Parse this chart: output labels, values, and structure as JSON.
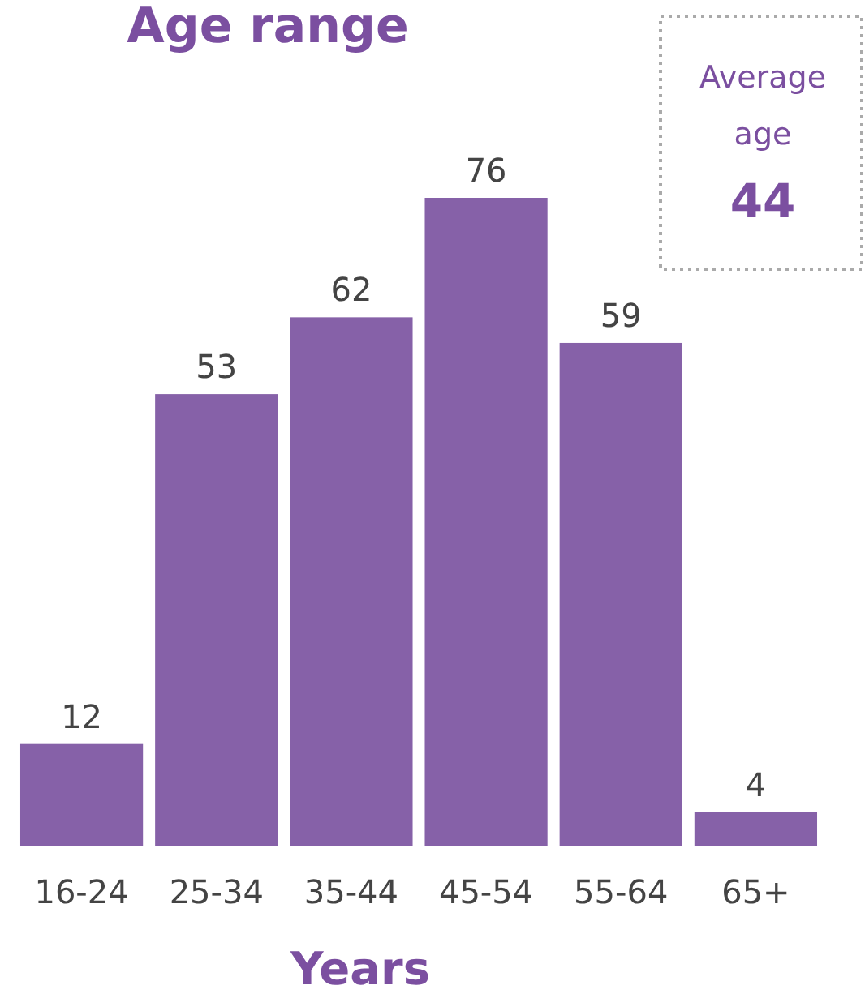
{
  "chart_data": {
    "type": "bar",
    "title": "Age range",
    "xlabel": "Years",
    "categories": [
      "16-24",
      "25-34",
      "35-44",
      "45-54",
      "55-64",
      "65+"
    ],
    "values": [
      12,
      53,
      62,
      76,
      59,
      4
    ],
    "color": "#8661a8",
    "data_labels": true,
    "annotations": [
      "Average age",
      "44"
    ]
  }
}
